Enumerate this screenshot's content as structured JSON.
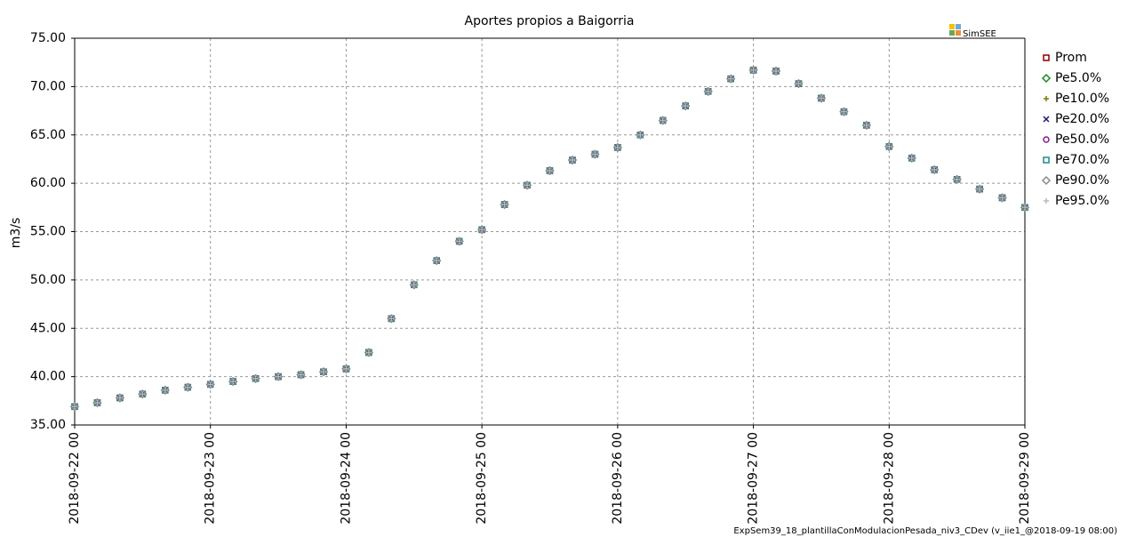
{
  "chart_data": {
    "type": "scatter",
    "title": "Aportes propios a Baigorria",
    "y_label": "m3/s",
    "logo": "SimSEE",
    "footer": "ExpSem39_18_plantillaConModulacionPesada_niv3_CDev (v_iie1_@2018-09-19 08:00)",
    "x": [
      "2018-09-22 00",
      "2018-09-22 04",
      "2018-09-22 08",
      "2018-09-22 12",
      "2018-09-22 16",
      "2018-09-22 20",
      "2018-09-23 00",
      "2018-09-23 04",
      "2018-09-23 08",
      "2018-09-23 12",
      "2018-09-23 16",
      "2018-09-23 20",
      "2018-09-24 00",
      "2018-09-24 04",
      "2018-09-24 08",
      "2018-09-24 12",
      "2018-09-24 16",
      "2018-09-24 20",
      "2018-09-25 00",
      "2018-09-25 04",
      "2018-09-25 08",
      "2018-09-25 12",
      "2018-09-25 16",
      "2018-09-25 20",
      "2018-09-26 00",
      "2018-09-26 04",
      "2018-09-26 08",
      "2018-09-26 12",
      "2018-09-26 16",
      "2018-09-26 20",
      "2018-09-27 00",
      "2018-09-27 04",
      "2018-09-27 08",
      "2018-09-27 12",
      "2018-09-27 16",
      "2018-09-27 20",
      "2018-09-28 00",
      "2018-09-28 04",
      "2018-09-28 08",
      "2018-09-28 12",
      "2018-09-28 16",
      "2018-09-28 20",
      "2018-09-29 00"
    ],
    "series": [
      {
        "name": "Prom",
        "color": "#8b0000",
        "marker": "square",
        "values": [
          36.9,
          37.3,
          37.8,
          38.2,
          38.6,
          38.9,
          39.2,
          39.5,
          39.8,
          40.0,
          40.2,
          40.5,
          40.8,
          42.5,
          46.0,
          49.5,
          52.0,
          54.0,
          55.2,
          57.8,
          59.8,
          61.3,
          62.4,
          63.0,
          63.7,
          65.0,
          66.5,
          68.0,
          69.5,
          70.8,
          71.7,
          71.6,
          70.3,
          68.8,
          67.4,
          66.0,
          63.8,
          62.6,
          61.4,
          60.4,
          59.4,
          58.5,
          57.5
        ]
      },
      {
        "name": "Pe5.0%",
        "color": "#1a8a1a",
        "marker": "diamond",
        "values": [
          36.9,
          37.3,
          37.8,
          38.2,
          38.6,
          38.9,
          39.2,
          39.5,
          39.8,
          40.0,
          40.2,
          40.5,
          40.8,
          42.5,
          46.0,
          49.5,
          52.0,
          54.0,
          55.2,
          57.8,
          59.8,
          61.3,
          62.4,
          63.0,
          63.7,
          65.0,
          66.5,
          68.0,
          69.5,
          70.8,
          71.7,
          71.6,
          70.3,
          68.8,
          67.4,
          66.0,
          63.8,
          62.6,
          61.4,
          60.4,
          59.4,
          58.5,
          57.5
        ]
      },
      {
        "name": "Pe10.0%",
        "color": "#7a7a00",
        "marker": "plus",
        "values": [
          36.9,
          37.3,
          37.8,
          38.2,
          38.6,
          38.9,
          39.2,
          39.5,
          39.8,
          40.0,
          40.2,
          40.5,
          40.8,
          42.5,
          46.0,
          49.5,
          52.0,
          54.0,
          55.2,
          57.8,
          59.8,
          61.3,
          62.4,
          63.0,
          63.7,
          65.0,
          66.5,
          68.0,
          69.5,
          70.8,
          71.7,
          71.6,
          70.3,
          68.8,
          67.4,
          66.0,
          63.8,
          62.6,
          61.4,
          60.4,
          59.4,
          58.5,
          57.5
        ]
      },
      {
        "name": "Pe20.0%",
        "color": "#1a1a6e",
        "marker": "cross",
        "values": [
          36.9,
          37.3,
          37.8,
          38.2,
          38.6,
          38.9,
          39.2,
          39.5,
          39.8,
          40.0,
          40.2,
          40.5,
          40.8,
          42.5,
          46.0,
          49.5,
          52.0,
          54.0,
          55.2,
          57.8,
          59.8,
          61.3,
          62.4,
          63.0,
          63.7,
          65.0,
          66.5,
          68.0,
          69.5,
          70.8,
          71.7,
          71.6,
          70.3,
          68.8,
          67.4,
          66.0,
          63.8,
          62.6,
          61.4,
          60.4,
          59.4,
          58.5,
          57.5
        ]
      },
      {
        "name": "Pe50.0%",
        "color": "#8b1a8b",
        "marker": "circle",
        "values": [
          36.9,
          37.3,
          37.8,
          38.2,
          38.6,
          38.9,
          39.2,
          39.5,
          39.8,
          40.0,
          40.2,
          40.5,
          40.8,
          42.5,
          46.0,
          49.5,
          52.0,
          54.0,
          55.2,
          57.8,
          59.8,
          61.3,
          62.4,
          63.0,
          63.7,
          65.0,
          66.5,
          68.0,
          69.5,
          70.8,
          71.7,
          71.6,
          70.3,
          68.8,
          67.4,
          66.0,
          63.8,
          62.6,
          61.4,
          60.4,
          59.4,
          58.5,
          57.5
        ]
      },
      {
        "name": "Pe70.0%",
        "color": "#1a8a8a",
        "marker": "square",
        "values": [
          36.9,
          37.3,
          37.8,
          38.2,
          38.6,
          38.9,
          39.2,
          39.5,
          39.8,
          40.0,
          40.2,
          40.5,
          40.8,
          42.5,
          46.0,
          49.5,
          52.0,
          54.0,
          55.2,
          57.8,
          59.8,
          61.3,
          62.4,
          63.0,
          63.7,
          65.0,
          66.5,
          68.0,
          69.5,
          70.8,
          71.7,
          71.6,
          70.3,
          68.8,
          67.4,
          66.0,
          63.8,
          62.6,
          61.4,
          60.4,
          59.4,
          58.5,
          57.5
        ]
      },
      {
        "name": "Pe90.0%",
        "color": "#8a8a8a",
        "marker": "diamond",
        "values": [
          36.9,
          37.3,
          37.8,
          38.2,
          38.6,
          38.9,
          39.2,
          39.5,
          39.8,
          40.0,
          40.2,
          40.5,
          40.8,
          42.5,
          46.0,
          49.5,
          52.0,
          54.0,
          55.2,
          57.8,
          59.8,
          61.3,
          62.4,
          63.0,
          63.7,
          65.0,
          66.5,
          68.0,
          69.5,
          70.8,
          71.7,
          71.6,
          70.3,
          68.8,
          67.4,
          66.0,
          63.8,
          62.6,
          61.4,
          60.4,
          59.4,
          58.5,
          57.5
        ]
      },
      {
        "name": "Pe95.0%",
        "color": "#b4bcc4",
        "marker": "plus",
        "values": [
          36.9,
          37.3,
          37.8,
          38.2,
          38.6,
          38.9,
          39.2,
          39.5,
          39.8,
          40.0,
          40.2,
          40.5,
          40.8,
          42.5,
          46.0,
          49.5,
          52.0,
          54.0,
          55.2,
          57.8,
          59.8,
          61.3,
          62.4,
          63.0,
          63.7,
          65.0,
          66.5,
          68.0,
          69.5,
          70.8,
          71.7,
          71.6,
          70.3,
          68.8,
          67.4,
          66.0,
          63.8,
          62.6,
          61.4,
          60.4,
          59.4,
          58.5,
          57.5
        ]
      }
    ],
    "xlim": [
      "2018-09-22 00",
      "2018-09-29 00"
    ],
    "xticks": [
      "2018-09-22 00",
      "2018-09-23 00",
      "2018-09-24 00",
      "2018-09-25 00",
      "2018-09-26 00",
      "2018-09-27 00",
      "2018-09-28 00",
      "2018-09-29 00"
    ],
    "ylim": [
      35,
      75
    ],
    "yticks": [
      {
        "value": 35,
        "label": "35.00"
      },
      {
        "value": 40,
        "label": "40.00"
      },
      {
        "value": 45,
        "label": "45.00"
      },
      {
        "value": 50,
        "label": "50.00"
      },
      {
        "value": 55,
        "label": "55.00"
      },
      {
        "value": 60,
        "label": "60.00"
      },
      {
        "value": 65,
        "label": "65.00"
      },
      {
        "value": 70,
        "label": "70.00"
      },
      {
        "value": 75,
        "label": "75.00"
      }
    ],
    "grid": true,
    "legend": "right"
  }
}
